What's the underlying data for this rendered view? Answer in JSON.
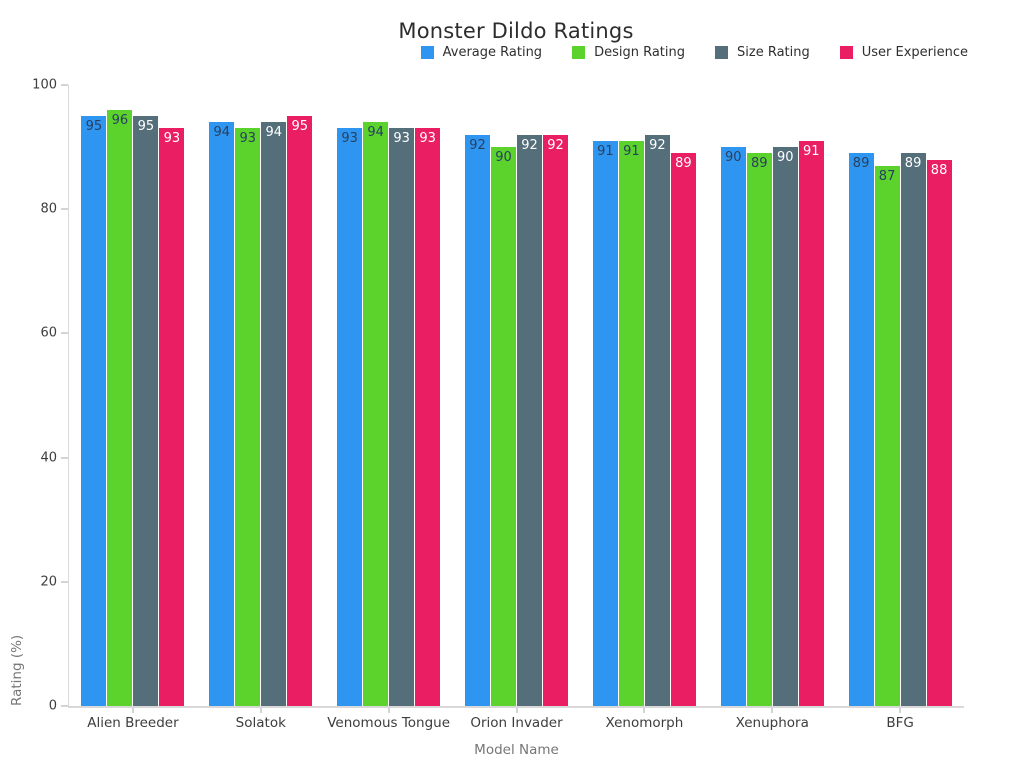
{
  "title": "Monster Dildo Ratings",
  "chart_data": {
    "type": "bar",
    "title": "Monster Dildo Ratings",
    "xlabel": "Model Name",
    "ylabel": "Rating (%)",
    "ylim": [
      0,
      100
    ],
    "yticks": [
      0,
      20,
      40,
      60,
      80,
      100
    ],
    "grid": false,
    "legend_position": "top-right",
    "categories": [
      "Alien Breeder",
      "Solatok",
      "Venomous Tongue",
      "Orion Invader",
      "Xenomorph",
      "Xenuphora",
      "BFG"
    ],
    "series": [
      {
        "name": "Average Rating",
        "color": "#2e96f0",
        "label_color": "#2a3f5f",
        "values": [
          95,
          94,
          93,
          92,
          91,
          90,
          89
        ]
      },
      {
        "name": "Design Rating",
        "color": "#5cd22d",
        "label_color": "#2a3f5f",
        "values": [
          96,
          93,
          94,
          90,
          91,
          89,
          87
        ]
      },
      {
        "name": "Size Rating",
        "color": "#546e7a",
        "label_color": "#ffffff",
        "values": [
          95,
          94,
          93,
          92,
          92,
          90,
          89
        ]
      },
      {
        "name": "User Experience",
        "color": "#e91e63",
        "label_color": "#ffffff",
        "values": [
          93,
          95,
          93,
          92,
          89,
          91,
          88
        ]
      }
    ]
  }
}
